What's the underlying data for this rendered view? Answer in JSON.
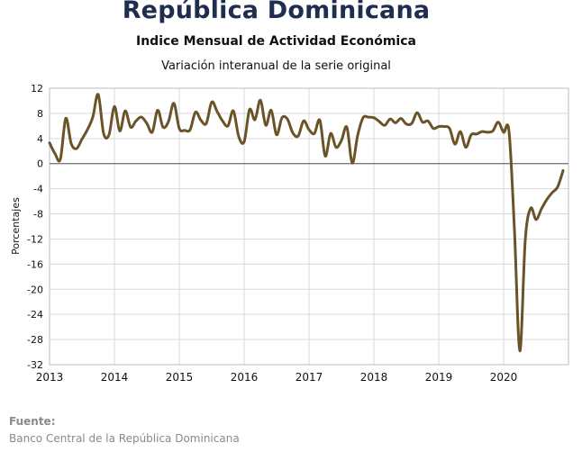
{
  "chart_data": {
    "type": "line",
    "title": "República Dominicana",
    "subtitle": "Indice Mensual de  Actividad Económica",
    "subtitle2": "Variación interanual de la serie original",
    "xlabel": "",
    "ylabel": "Porcentajes",
    "ylim": [
      -32,
      12
    ],
    "yticks": [
      "12",
      "8",
      "4",
      "0",
      "-4",
      "-8",
      "-12",
      "-16",
      "-20",
      "-24",
      "-28",
      "-32"
    ],
    "xticks": [
      "2013",
      "2014",
      "2015",
      "2016",
      "2017",
      "2018",
      "2019",
      "2020"
    ],
    "grid": true,
    "line_color": "#6b5328",
    "series": [
      {
        "name": "",
        "x": [
          "2013-01",
          "2013-02",
          "2013-03",
          "2013-04",
          "2013-05",
          "2013-06",
          "2013-07",
          "2013-08",
          "2013-09",
          "2013-10",
          "2013-11",
          "2013-12",
          "2014-01",
          "2014-02",
          "2014-03",
          "2014-04",
          "2014-05",
          "2014-06",
          "2014-07",
          "2014-08",
          "2014-09",
          "2014-10",
          "2014-11",
          "2014-12",
          "2015-01",
          "2015-02",
          "2015-03",
          "2015-04",
          "2015-05",
          "2015-06",
          "2015-07",
          "2015-08",
          "2015-09",
          "2015-10",
          "2015-11",
          "2015-12",
          "2016-01",
          "2016-02",
          "2016-03",
          "2016-04",
          "2016-05",
          "2016-06",
          "2016-07",
          "2016-08",
          "2016-09",
          "2016-10",
          "2016-11",
          "2016-12",
          "2017-01",
          "2017-02",
          "2017-03",
          "2017-04",
          "2017-05",
          "2017-06",
          "2017-07",
          "2017-08",
          "2017-09",
          "2017-10",
          "2017-11",
          "2017-12",
          "2018-01",
          "2018-02",
          "2018-03",
          "2018-04",
          "2018-05",
          "2018-06",
          "2018-07",
          "2018-08",
          "2018-09",
          "2018-10",
          "2018-11",
          "2018-12",
          "2019-01",
          "2019-02",
          "2019-03",
          "2019-04",
          "2019-05",
          "2019-06",
          "2019-07",
          "2019-08",
          "2019-09",
          "2019-10",
          "2019-11",
          "2019-12",
          "2020-01",
          "2020-02",
          "2020-03",
          "2020-04",
          "2020-05",
          "2020-06",
          "2020-07",
          "2020-08",
          "2020-09",
          "2020-10",
          "2020-11",
          "2020-12"
        ],
        "values": [
          3.3,
          1.6,
          0.7,
          7.2,
          3.2,
          2.4,
          3.9,
          5.4,
          7.4,
          11.0,
          4.8,
          4.6,
          9.1,
          5.2,
          8.4,
          5.8,
          6.8,
          7.4,
          6.4,
          5.0,
          8.5,
          5.8,
          6.7,
          9.6,
          5.6,
          5.3,
          5.4,
          8.2,
          6.9,
          6.4,
          9.8,
          8.3,
          6.8,
          6.0,
          8.4,
          4.3,
          3.5,
          8.6,
          7.0,
          10.1,
          6.1,
          8.5,
          4.6,
          7.3,
          7.1,
          4.9,
          4.4,
          6.8,
          5.4,
          4.8,
          6.9,
          1.2,
          4.8,
          2.6,
          3.7,
          5.8,
          0.1,
          4.5,
          7.3,
          7.4,
          7.3,
          6.7,
          6.1,
          7.1,
          6.5,
          7.2,
          6.3,
          6.4,
          8.1,
          6.6,
          6.8,
          5.6,
          5.9,
          5.9,
          5.6,
          3.1,
          5.1,
          2.6,
          4.6,
          4.7,
          5.1,
          5.0,
          5.2,
          6.6,
          5.0,
          5.1,
          -10.5,
          -29.8,
          -12.2,
          -7.1,
          -8.9,
          -7.2,
          -5.7,
          -4.6,
          -3.7,
          -1.1
        ]
      }
    ]
  },
  "footer": {
    "source_label": "Fuente:",
    "source_text": "Banco Central de la República Dominicana"
  }
}
